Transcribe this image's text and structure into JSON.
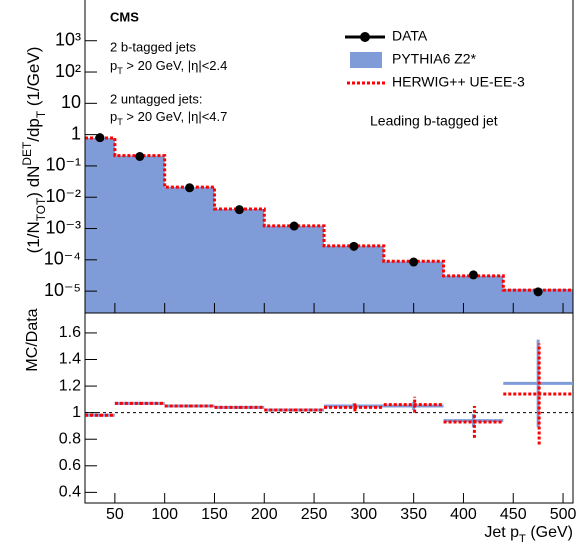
{
  "chart_data": [
    {
      "type": "histogram",
      "ylabel": [
        "(1/N",
        "TOT",
        ") dN",
        "DET",
        "/dp",
        "T",
        " (1/GeV)"
      ],
      "bins": [
        20,
        50,
        100,
        150,
        200,
        260,
        320,
        380,
        440,
        510
      ],
      "log_y": true,
      "ylim": [
        2e-06,
        20000
      ],
      "yticks": [
        {
          "value": 1e-05,
          "label": "10⁻⁵"
        },
        {
          "value": 0.0001,
          "label": "10⁻⁴"
        },
        {
          "value": 0.001,
          "label": "10⁻³"
        },
        {
          "value": 0.01,
          "label": "10⁻²"
        },
        {
          "value": 0.1,
          "label": "10⁻¹"
        },
        1,
        10,
        {
          "value": 100,
          "label": "10²"
        },
        {
          "value": 1000,
          "label": "10³"
        }
      ],
      "series": [
        {
          "name": "DATA",
          "color": "#000000",
          "values": [
            0.8,
            0.2,
            0.02,
            0.004,
            0.0012,
            0.00027,
            8.5e-05,
            3.3e-05,
            9.5e-06
          ]
        },
        {
          "name": "PYTHIA6 Z2*",
          "color": "#7f9cd8",
          "values": [
            0.78,
            0.214,
            0.021,
            0.0042,
            0.00122,
            0.00028,
            8.9e-05,
            3.1e-05,
            1.16e-05
          ]
        },
        {
          "name": "HERWIG++ UE-EE-3",
          "color": "#ff0000",
          "values": [
            0.78,
            0.214,
            0.021,
            0.0042,
            0.00122,
            0.00028,
            9e-05,
            3.07e-05,
            1.08e-05
          ]
        }
      ],
      "legend": "upper right",
      "annotations": {
        "experiment": "CMS",
        "selection1": "2 b-tagged jets",
        "cut1": [
          "p",
          "T",
          " > 20 GeV, |η|<2.4"
        ],
        "selection2": "2 untagged jets:",
        "cut2": [
          "p",
          "T",
          " > 20 GeV, |η|<4.7"
        ],
        "observable": "Leading b-tagged jet"
      }
    },
    {
      "type": "ratio",
      "ylabel": "MC/Data",
      "xlabel": [
        "Jet p",
        "T",
        " (GeV)"
      ],
      "xlim": [
        20,
        510
      ],
      "xticks": [
        50,
        100,
        150,
        200,
        250,
        300,
        350,
        400,
        450,
        500
      ],
      "ylim": [
        0.32,
        1.75
      ],
      "yticks": [
        0.4,
        0.6,
        0.8,
        1,
        1.2,
        1.4,
        1.6
      ],
      "reference": 1,
      "series": [
        {
          "color": "#7f9cd8",
          "values": [
            0.98,
            1.07,
            1.05,
            1.04,
            1.02,
            1.05,
            1.05,
            0.94,
            1.22
          ],
          "errors": [
            0.01,
            0.01,
            0.01,
            0.01,
            0.01,
            0.02,
            0.03,
            0.05,
            0.33
          ]
        },
        {
          "color": "#ff0000",
          "values": [
            0.98,
            1.07,
            1.05,
            1.04,
            1.02,
            1.04,
            1.06,
            0.93,
            1.14
          ],
          "errors": [
            0.01,
            0.01,
            0.01,
            0.01,
            0.01,
            0.03,
            0.06,
            0.12,
            0.38
          ]
        }
      ]
    }
  ]
}
